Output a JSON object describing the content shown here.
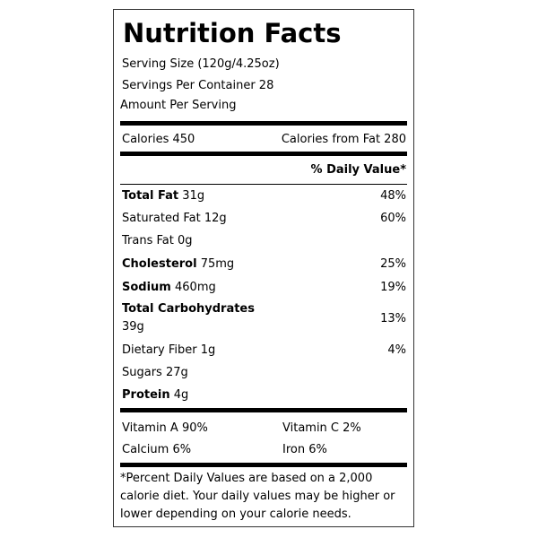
{
  "title": "Nutrition Facts",
  "serving_size": "Serving Size (120g/4.25oz)",
  "servings_per_container": "Servings Per Container 28",
  "amount_per_serving": "Amount Per Serving",
  "calories": "Calories 450",
  "calories_from_fat": "Calories from Fat 280",
  "daily_value_header": "% Daily Value*",
  "nutrients": [
    {
      "name": "Total Fat",
      "amount": "31g",
      "dv": "48%"
    },
    {
      "name": "Saturated Fat",
      "amount": "12g",
      "dv": "60%"
    },
    {
      "name": "Trans Fat",
      "amount": "0g",
      "dv": ""
    },
    {
      "name": "Cholesterol",
      "amount": "75mg",
      "dv": "25%"
    },
    {
      "name": "Sodium",
      "amount": "460mg",
      "dv": "19%"
    },
    {
      "name": "Total Carbohydrates",
      "amount": "39g",
      "dv": "13%"
    },
    {
      "name": "Dietary Fiber",
      "amount": "1g",
      "dv": "4%"
    },
    {
      "name": "Sugars",
      "amount": "27g",
      "dv": ""
    },
    {
      "name": "Protein",
      "amount": "4g",
      "dv": ""
    }
  ],
  "vitamins": {
    "vitamin_a": "Vitamin A 90%",
    "vitamin_c": "Vitamin C 2%",
    "calcium": "Calcium 6%",
    "iron": "Iron 6%"
  },
  "footnote": {
    "line1": "*Percent Daily Values are based on a 2,000",
    "line2": "calorie diet. Your daily values may be higher or",
    "line3": "lower depending on your calorie needs."
  }
}
